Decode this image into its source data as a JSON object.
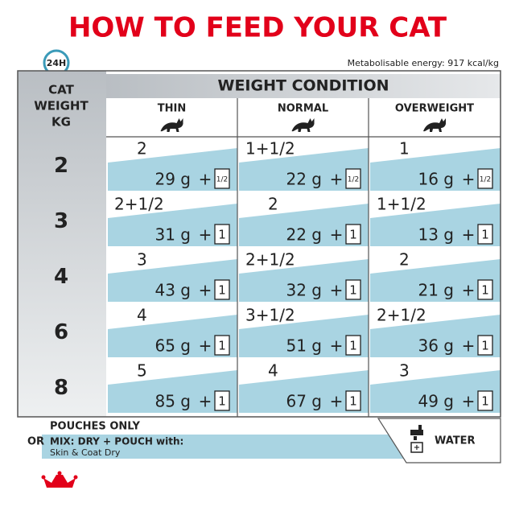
{
  "title": "HOW TO FEED YOUR CAT",
  "badge": "24H",
  "energy": "Metabolisable energy: 917 kcal/kg",
  "table": {
    "row_header": [
      "CAT",
      "WEIGHT",
      "KG"
    ],
    "group_header": "WEIGHT CONDITION",
    "columns": [
      "THIN",
      "NORMAL",
      "OVERWEIGHT"
    ],
    "plus": "+",
    "rows": [
      {
        "weight": "2",
        "cells": [
          {
            "dry": "2",
            "wet": "29 g",
            "pouch": "1/2"
          },
          {
            "dry": "1+1/2",
            "wet": "22 g",
            "pouch": "1/2"
          },
          {
            "dry": "1",
            "wet": "16 g",
            "pouch": "1/2"
          }
        ]
      },
      {
        "weight": "3",
        "cells": [
          {
            "dry": "2+1/2",
            "wet": "31 g",
            "pouch": "1"
          },
          {
            "dry": "2",
            "wet": "22 g",
            "pouch": "1"
          },
          {
            "dry": "1+1/2",
            "wet": "13 g",
            "pouch": "1"
          }
        ]
      },
      {
        "weight": "4",
        "cells": [
          {
            "dry": "3",
            "wet": "43 g",
            "pouch": "1"
          },
          {
            "dry": "2+1/2",
            "wet": "32 g",
            "pouch": "1"
          },
          {
            "dry": "2",
            "wet": "21 g",
            "pouch": "1"
          }
        ]
      },
      {
        "weight": "6",
        "cells": [
          {
            "dry": "4",
            "wet": "65 g",
            "pouch": "1"
          },
          {
            "dry": "3+1/2",
            "wet": "51 g",
            "pouch": "1"
          },
          {
            "dry": "2+1/2",
            "wet": "36 g",
            "pouch": "1"
          }
        ]
      },
      {
        "weight": "8",
        "cells": [
          {
            "dry": "5",
            "wet": "85 g",
            "pouch": "1"
          },
          {
            "dry": "4",
            "wet": "67 g",
            "pouch": "1"
          },
          {
            "dry": "3",
            "wet": "49 g",
            "pouch": "1"
          }
        ]
      }
    ]
  },
  "footer": {
    "pouches_only": "POUCHES ONLY",
    "or": "OR",
    "mix": "MIX: DRY + POUCH with:",
    "mix_product": "Skin & Coat Dry",
    "water": "WATER"
  }
}
